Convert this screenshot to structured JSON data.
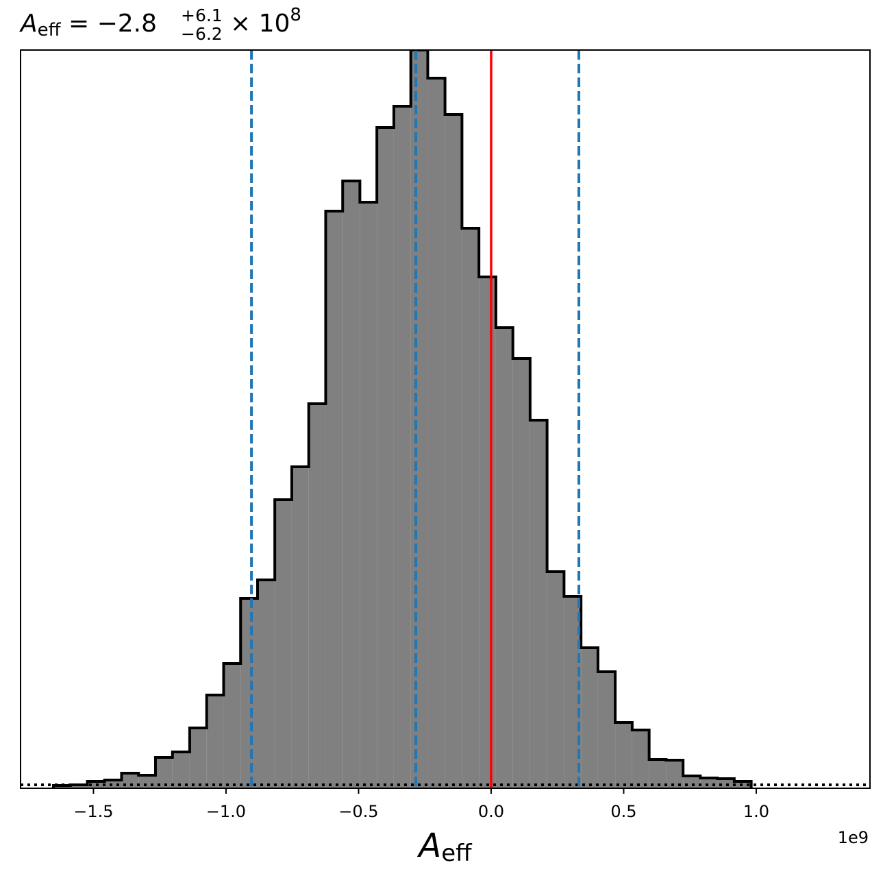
{
  "chart_data": {
    "type": "histogram",
    "title": {
      "symbol": "A",
      "subscript": "eff",
      "median": " = −2.8",
      "upper": "+6.1",
      "lower": "−6.2",
      "scale": " × 10",
      "exponent": "8"
    },
    "x_label": {
      "symbol": "A",
      "subscript": "eff"
    },
    "x_offset_label": "1e9",
    "bins": [
      -1.651,
      -1.587,
      -1.523,
      -1.458,
      -1.394,
      -1.33,
      -1.266,
      -1.202,
      -1.137,
      -1.073,
      -1.009,
      -0.945,
      -0.881,
      -0.816,
      -0.752,
      -0.688,
      -0.624,
      -0.56,
      -0.495,
      -0.431,
      -0.367,
      -0.303,
      -0.239,
      -0.174,
      -0.11,
      -0.046,
      0.018,
      0.082,
      0.147,
      0.211,
      0.275,
      0.339,
      0.403,
      0.468,
      0.532,
      0.596,
      0.66,
      0.724,
      0.789,
      0.853,
      0.917,
      0.981
    ],
    "values": [
      4,
      5,
      10,
      12,
      22,
      19,
      45,
      53,
      88,
      136,
      182,
      277,
      304,
      421,
      469,
      561,
      842,
      886,
      855,
      964,
      995,
      1077,
      1036,
      983,
      817,
      746,
      672,
      627,
      537,
      316,
      280,
      205,
      170,
      96,
      85,
      42,
      41,
      18,
      15,
      14,
      10
    ],
    "color": "#808080",
    "edge_color": "#000000",
    "xlim": [
      -1.775,
      1.429
    ],
    "ylim": [
      0,
      1077
    ],
    "xticks": [
      {
        "value": -1.5,
        "label": "−1.5"
      },
      {
        "value": -1.0,
        "label": "−1.0"
      },
      {
        "value": -0.5,
        "label": "−0.5"
      },
      {
        "value": 0,
        "label": "0.0"
      },
      {
        "value": 0.5,
        "label": "0.5"
      },
      {
        "value": 1.0,
        "label": "1.0"
      }
    ],
    "quantile_lines": {
      "values": [
        -0.904,
        -0.284,
        0.331
      ],
      "color": "#1f77b4"
    },
    "truth_line": {
      "value": 0,
      "color": "#ff0000"
    },
    "baseline_line": {
      "value": 5,
      "color": "#000000"
    }
  }
}
